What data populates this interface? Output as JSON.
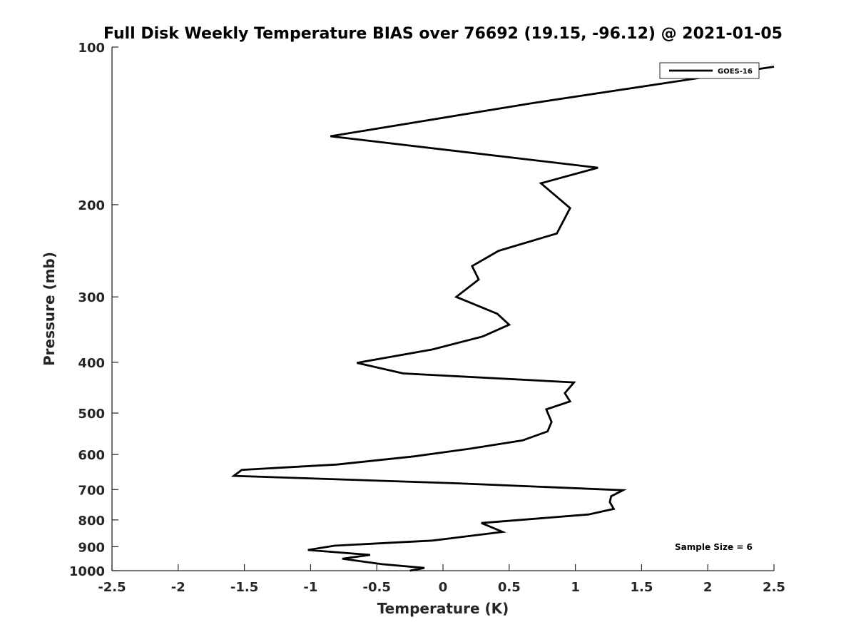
{
  "chart_data": {
    "type": "line",
    "title": "Full Disk Weekly Temperature BIAS over 76692 (19.15, -96.12) @ 2021-01-05",
    "xlabel": "Temperature (K)",
    "ylabel": "Pressure (mb)",
    "xlim": [
      -2.5,
      2.5
    ],
    "ylim": [
      100,
      1000
    ],
    "yscale": "log",
    "yreversed": true,
    "grid": false,
    "legend_position": "top-right",
    "xticks": [
      -2.5,
      -2,
      -1.5,
      -1,
      -0.5,
      0,
      0.5,
      1,
      1.5,
      2,
      2.5
    ],
    "xtick_labels": [
      "-2.5",
      "-2",
      "-1.5",
      "-1",
      "-0.5",
      "0",
      "0.5",
      "1",
      "1.5",
      "2",
      "2.5"
    ],
    "yticks": [
      100,
      200,
      300,
      400,
      500,
      600,
      700,
      800,
      900,
      1000
    ],
    "ytick_labels": [
      "100",
      "200",
      "300",
      "400",
      "500",
      "600",
      "700",
      "800",
      "900",
      "1000"
    ],
    "annotation": "Sample Size = 6",
    "series": [
      {
        "name": "GOES-16",
        "color": "#000000",
        "points": [
          [
            2.5,
            109
          ],
          [
            0.67,
            128
          ],
          [
            -0.85,
            148
          ],
          [
            1.17,
            170
          ],
          [
            0.74,
            182
          ],
          [
            0.96,
            203
          ],
          [
            0.86,
            227
          ],
          [
            0.42,
            245
          ],
          [
            0.22,
            262
          ],
          [
            0.27,
            278
          ],
          [
            0.1,
            300
          ],
          [
            0.41,
            323
          ],
          [
            0.5,
            339
          ],
          [
            0.3,
            357
          ],
          [
            -0.08,
            378
          ],
          [
            -0.65,
            401
          ],
          [
            -0.3,
            420
          ],
          [
            0.99,
            437
          ],
          [
            0.92,
            458
          ],
          [
            0.96,
            475
          ],
          [
            0.78,
            492
          ],
          [
            0.82,
            520
          ],
          [
            0.79,
            542
          ],
          [
            0.6,
            564
          ],
          [
            0.2,
            585
          ],
          [
            -0.22,
            605
          ],
          [
            -0.8,
            627
          ],
          [
            -1.52,
            642
          ],
          [
            -1.58,
            659
          ],
          [
            0.1,
            681
          ],
          [
            1.36,
            702
          ],
          [
            1.27,
            721
          ],
          [
            1.26,
            740
          ],
          [
            1.29,
            762
          ],
          [
            1.1,
            781
          ],
          [
            0.29,
            811
          ],
          [
            0.45,
            843
          ],
          [
            -0.08,
            876
          ],
          [
            -0.82,
            896
          ],
          [
            -1.02,
            913
          ],
          [
            -0.55,
            933
          ],
          [
            -0.76,
            949
          ],
          [
            -0.46,
            972
          ],
          [
            -0.14,
            988
          ],
          [
            -0.25,
            1000
          ]
        ]
      }
    ]
  }
}
